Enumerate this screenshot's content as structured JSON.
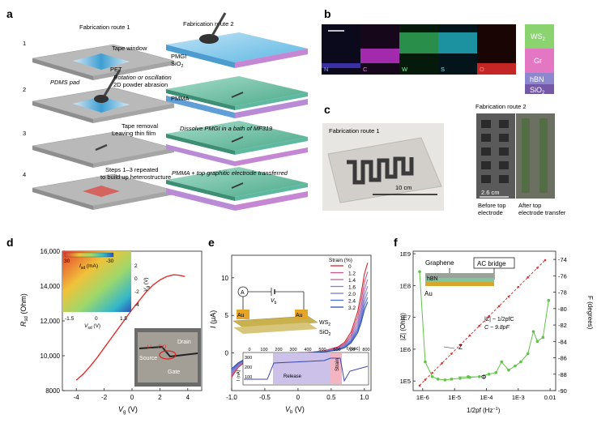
{
  "panel_letters": {
    "a": "a",
    "b": "b",
    "c": "c",
    "d": "d",
    "e": "e",
    "f": "f"
  },
  "panel_a": {
    "route1_title": "Fabrication route 1",
    "route2_title": "Fabrication route 2",
    "step_numbers": [
      "1",
      "2",
      "3",
      "4"
    ],
    "step1_labels": {
      "tape_window": "Tape window",
      "pet": "PET"
    },
    "step2_labels": {
      "pdms_pad": "PDMS pad",
      "rotation": "Rotation or oscillation",
      "abrasion": "2D powder abrasion"
    },
    "step3_labels": {
      "tape_removal": "Tape removal",
      "leaving": "Leaving thin film"
    },
    "step4_labels": {
      "repeated": "Steps 1–3 repeated",
      "build": "to build up heterostructure"
    },
    "route2_labels": {
      "pmgi": "PMGI",
      "sio2": "SiO",
      "pmma": "PMMA",
      "dissolve": "Dissolve PMGI in a bath of MF319",
      "transfer": "PMMA + top graphitic electrode transferred"
    }
  },
  "panel_b": {
    "map_labels": [
      "N",
      "C",
      "W",
      "S",
      "O"
    ],
    "legend": [
      "WS",
      "Gr",
      "hBN",
      "SiO"
    ],
    "legend_colors": [
      "#8bd36f",
      "#e477c4",
      "#8d87cf",
      "#7558a8"
    ]
  },
  "panel_c": {
    "route1_title": "Fabrication route 1",
    "route2_title": "Fabrication route 2",
    "scale1": "10 cm",
    "scale2": "2.6 cm",
    "before_line1": "Before top",
    "before_line2": "electrode",
    "after_line1": "After top",
    "after_line2": "electrode transfer"
  },
  "panel_d": {
    "ylabel": "R",
    "ylabel_sub": "sd",
    "ylabel_unit": " (Ohm)",
    "xlabel": "V",
    "xlabel_sub": "g",
    "xlabel_unit": " (V)",
    "inset_cbar_label": "I",
    "inset_cbar_sub": "sd",
    "inset_cbar_unit": " (mA)",
    "inset_cbar_ticks": [
      "30",
      "-30"
    ],
    "inset_x_label": "V",
    "inset_x_sub": "sd",
    "inset_x_unit": " (V)",
    "inset_y_label": "V",
    "inset_y_sub": "g",
    "inset_y_unit": " (V)",
    "inset_x_ticks": [
      "-1.5",
      "0",
      "1.5"
    ],
    "inset_y_ticks": [
      "2",
      "0",
      "-2",
      "-4"
    ],
    "photo_labels": {
      "drain": "Drain",
      "source": "Source",
      "gate": "Gate",
      "li": "Li",
      "clo": "ClO"
    }
  },
  "panel_e": {
    "ylabel": "I",
    "ylabel_unit": " (μA)",
    "xlabel": "V",
    "xlabel_sub": "b",
    "xlabel_unit": " (V)",
    "legend_title": "Strain (%)",
    "legend_values": [
      "0",
      "1.2",
      "1.4",
      "1.6",
      "2.0",
      "2.4",
      "3.2"
    ],
    "schematic_labels": {
      "ammeter": "A",
      "vb": "V",
      "vb_sub": "b",
      "au1": "Au",
      "au2": "Au",
      "ws2": "WS",
      "sio2": "SiO"
    },
    "inset": {
      "ylabel": "I (nA)",
      "xlabel": "t (sec)",
      "x_ticks": [
        "0",
        "100",
        "200",
        "300",
        "400",
        "500",
        "600",
        "700",
        "800"
      ],
      "y_ticks": [
        "300",
        "200",
        "100"
      ],
      "release": "Release",
      "strain": "Strain"
    }
  },
  "panel_f": {
    "ylabel_left": "|Z| (Ohm)",
    "ylabel_right": "F (degrees)",
    "xlabel": "1/2pf (Hz",
    "xlabel_sup": "−1",
    "xlabel_end": ")",
    "y_left_ticks": [
      "1E9",
      "1E8",
      "1E7",
      "1E6",
      "1E5"
    ],
    "y_right_ticks": [
      "-74",
      "-76",
      "-78",
      "-80",
      "-82",
      "-84",
      "-86",
      "-88",
      "-90"
    ],
    "x_ticks": [
      "1E-6",
      "1E-5",
      "1E-4",
      "1E-3",
      "0.01"
    ],
    "graphene": "Graphene",
    "hbn": "hBN",
    "au": "Au",
    "ac_bridge": "AC bridge",
    "formula": "|Z| ~ 1/2pfC",
    "cvalue": "C ~ 9.8pF",
    "z_label": "Z",
    "phi_label": "Φ"
  },
  "chart_data": [
    {
      "type": "line",
      "panel": "d",
      "xlabel": "Vg (V)",
      "ylabel": "Rsd (Ohm)",
      "xlim": [
        -5,
        5
      ],
      "ylim": [
        8000,
        16000
      ],
      "x_ticks": [
        "-4",
        "-2",
        "0",
        "2",
        "4"
      ],
      "y_ticks": [
        "8000",
        "10,000",
        "12,000",
        "14,000",
        "16,000"
      ],
      "x": [
        -4.0,
        -3.5,
        -3.0,
        -2.5,
        -2.0,
        -1.5,
        -1.0,
        -0.5,
        0.0,
        0.5,
        1.0,
        1.5,
        2.0,
        2.5,
        3.0,
        3.4,
        3.8
      ],
      "values": [
        8600,
        8950,
        9400,
        9900,
        10450,
        11000,
        11550,
        12100,
        12650,
        13150,
        13650,
        14050,
        14350,
        14550,
        14650,
        14620,
        14550
      ],
      "color": "#e0302e"
    },
    {
      "type": "line",
      "panel": "e",
      "xlabel": "Vb (V)",
      "ylabel": "I (μA)",
      "xlim": [
        -1.0,
        1.1
      ],
      "ylim": [
        -5,
        13
      ],
      "x_ticks": [
        "-1.0",
        "-0.5",
        "0",
        "0.5",
        "1.0"
      ],
      "y_ticks": [
        "10",
        "5",
        "0"
      ],
      "x": [
        -1.0,
        -0.9,
        -0.8,
        -0.6,
        -0.4,
        -0.2,
        0.0,
        0.2,
        0.4,
        0.6,
        0.7,
        0.8,
        0.9,
        0.95,
        1.0,
        1.05
      ],
      "series": [
        {
          "name": "0",
          "color": "#d4232a",
          "values": [
            -3.2,
            -1.9,
            -1.2,
            -0.6,
            -0.3,
            -0.1,
            0.0,
            0.1,
            0.3,
            0.8,
            1.4,
            2.8,
            5.5,
            7.8,
            10.5,
            12.0
          ]
        },
        {
          "name": "1.2",
          "color": "#c95a88",
          "values": [
            -3.0,
            -1.8,
            -1.1,
            -0.55,
            -0.25,
            -0.08,
            0.0,
            0.09,
            0.27,
            0.7,
            1.2,
            2.4,
            4.8,
            6.8,
            9.4,
            10.8
          ]
        },
        {
          "name": "1.4",
          "color": "#a86db3",
          "values": [
            -2.8,
            -1.7,
            -1.0,
            -0.5,
            -0.22,
            -0.07,
            0.0,
            0.08,
            0.24,
            0.62,
            1.1,
            2.1,
            4.2,
            6.0,
            8.4,
            9.8
          ]
        },
        {
          "name": "1.6",
          "color": "#8e7cc7",
          "values": [
            -2.7,
            -1.6,
            -0.95,
            -0.45,
            -0.2,
            -0.06,
            0.0,
            0.07,
            0.21,
            0.55,
            0.95,
            1.85,
            3.7,
            5.4,
            7.6,
            8.9
          ]
        },
        {
          "name": "2.0",
          "color": "#6f7fcf",
          "values": [
            -2.5,
            -1.5,
            -0.9,
            -0.42,
            -0.18,
            -0.05,
            0.0,
            0.06,
            0.19,
            0.5,
            0.85,
            1.65,
            3.3,
            4.9,
            6.9,
            8.1
          ]
        },
        {
          "name": "2.4",
          "color": "#4f6fca",
          "values": [
            -2.3,
            -1.4,
            -0.85,
            -0.4,
            -0.16,
            -0.05,
            0.0,
            0.05,
            0.17,
            0.45,
            0.76,
            1.5,
            3.0,
            4.4,
            6.3,
            7.4
          ]
        },
        {
          "name": "3.2",
          "color": "#2f4fb8",
          "values": [
            -2.1,
            -1.3,
            -0.8,
            -0.38,
            -0.15,
            -0.04,
            0.0,
            0.05,
            0.15,
            0.4,
            0.68,
            1.35,
            2.7,
            4.0,
            5.7,
            6.8
          ]
        }
      ]
    },
    {
      "type": "line",
      "panel": "f",
      "xlabel": "1/2pf (Hz−1)",
      "ylabel": "|Z| (Ohm)",
      "y2label": "F (degrees)",
      "log_x": true,
      "log_y": true,
      "xlim": [
        5e-07,
        0.015
      ],
      "ylim": [
        50000.0,
        1200000000.0
      ],
      "y2lim": [
        -90,
        -73
      ],
      "series": [
        {
          "name": "Z",
          "color": "#e0302e",
          "x": [
            8e-07,
            1.2e-06,
            2e-06,
            4e-06,
            8e-06,
            1.5e-05,
            3e-05,
            6e-05,
            0.00012,
            0.00025,
            0.0005,
            0.001,
            0.002,
            0.004,
            0.007
          ],
          "values": [
            72000.0,
            110000.0,
            180000.0,
            360000.0,
            720000.0,
            1350000.0,
            2700000.0,
            5400000.0,
            10800000.0,
            22500000.0,
            45000000.0,
            90000000.0,
            180000000.0,
            360000000.0,
            630000000.0
          ]
        },
        {
          "name": "Φ",
          "color": "#62c34a",
          "x": [
            8e-07,
            1.2e-06,
            2e-06,
            3e-06,
            5e-06,
            8e-06,
            1.5e-05,
            3e-05,
            6e-05,
            0.00012,
            0.0002,
            0.0003,
            0.0005,
            0.0008,
            0.0012,
            0.002,
            0.003,
            0.004,
            0.006,
            0.009
          ],
          "values": [
            -75.5,
            -86.5,
            -88.3,
            -88.6,
            -88.7,
            -88.6,
            -88.5,
            -88.4,
            -88.3,
            -88.0,
            -87.8,
            -86.5,
            -87.5,
            -87.0,
            -86.5,
            -85.5,
            -82.8,
            -84.0,
            -83.5,
            -79.0
          ]
        }
      ]
    }
  ]
}
